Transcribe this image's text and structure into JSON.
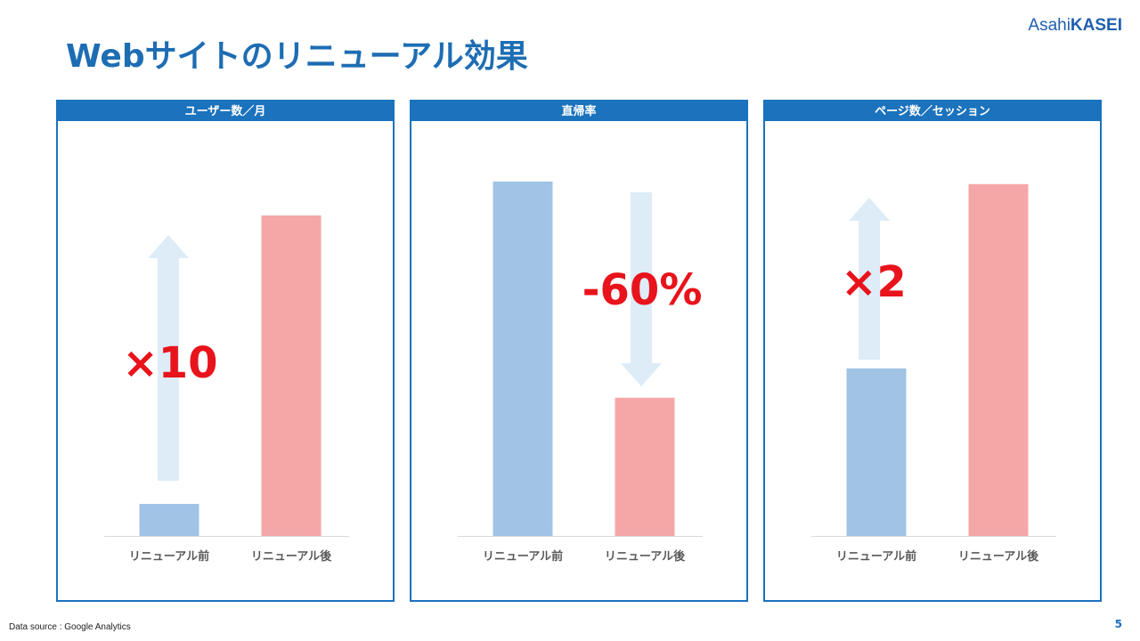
{
  "slide": {
    "title": "Webサイトのリニューアル効果",
    "logo_prefix": "Asahi",
    "logo_suffix": "KASEI",
    "source": "Data source :  Google Analytics",
    "page_number": "5"
  },
  "colors": {
    "primary": "#1b72bd",
    "before_bar": "#a0c3e6",
    "after_bar": "#f5a7a8",
    "arrow": "#deecf8",
    "annotation": "#e8131b"
  },
  "chart_data": [
    {
      "type": "bar",
      "title": "ユーザー数／月",
      "categories": [
        "リニューアル前",
        "リニューアル後"
      ],
      "values": [
        1,
        10
      ],
      "ylim": [
        0,
        11.5
      ],
      "annotation": "×10",
      "arrow_direction": "up",
      "grid": false
    },
    {
      "type": "bar",
      "title": "直帰率",
      "categories": [
        "リニューアル前",
        "リニューアル後"
      ],
      "values": [
        100,
        39
      ],
      "ylim": [
        0,
        104
      ],
      "annotation": "-60%",
      "arrow_direction": "down",
      "grid": false
    },
    {
      "type": "bar",
      "title": "ページ数／セッション",
      "categories": [
        "リニューアル前",
        "リニューアル後"
      ],
      "values": [
        1,
        2.1
      ],
      "ylim": [
        0,
        2.2
      ],
      "annotation": "×2",
      "arrow_direction": "up",
      "grid": false
    }
  ]
}
